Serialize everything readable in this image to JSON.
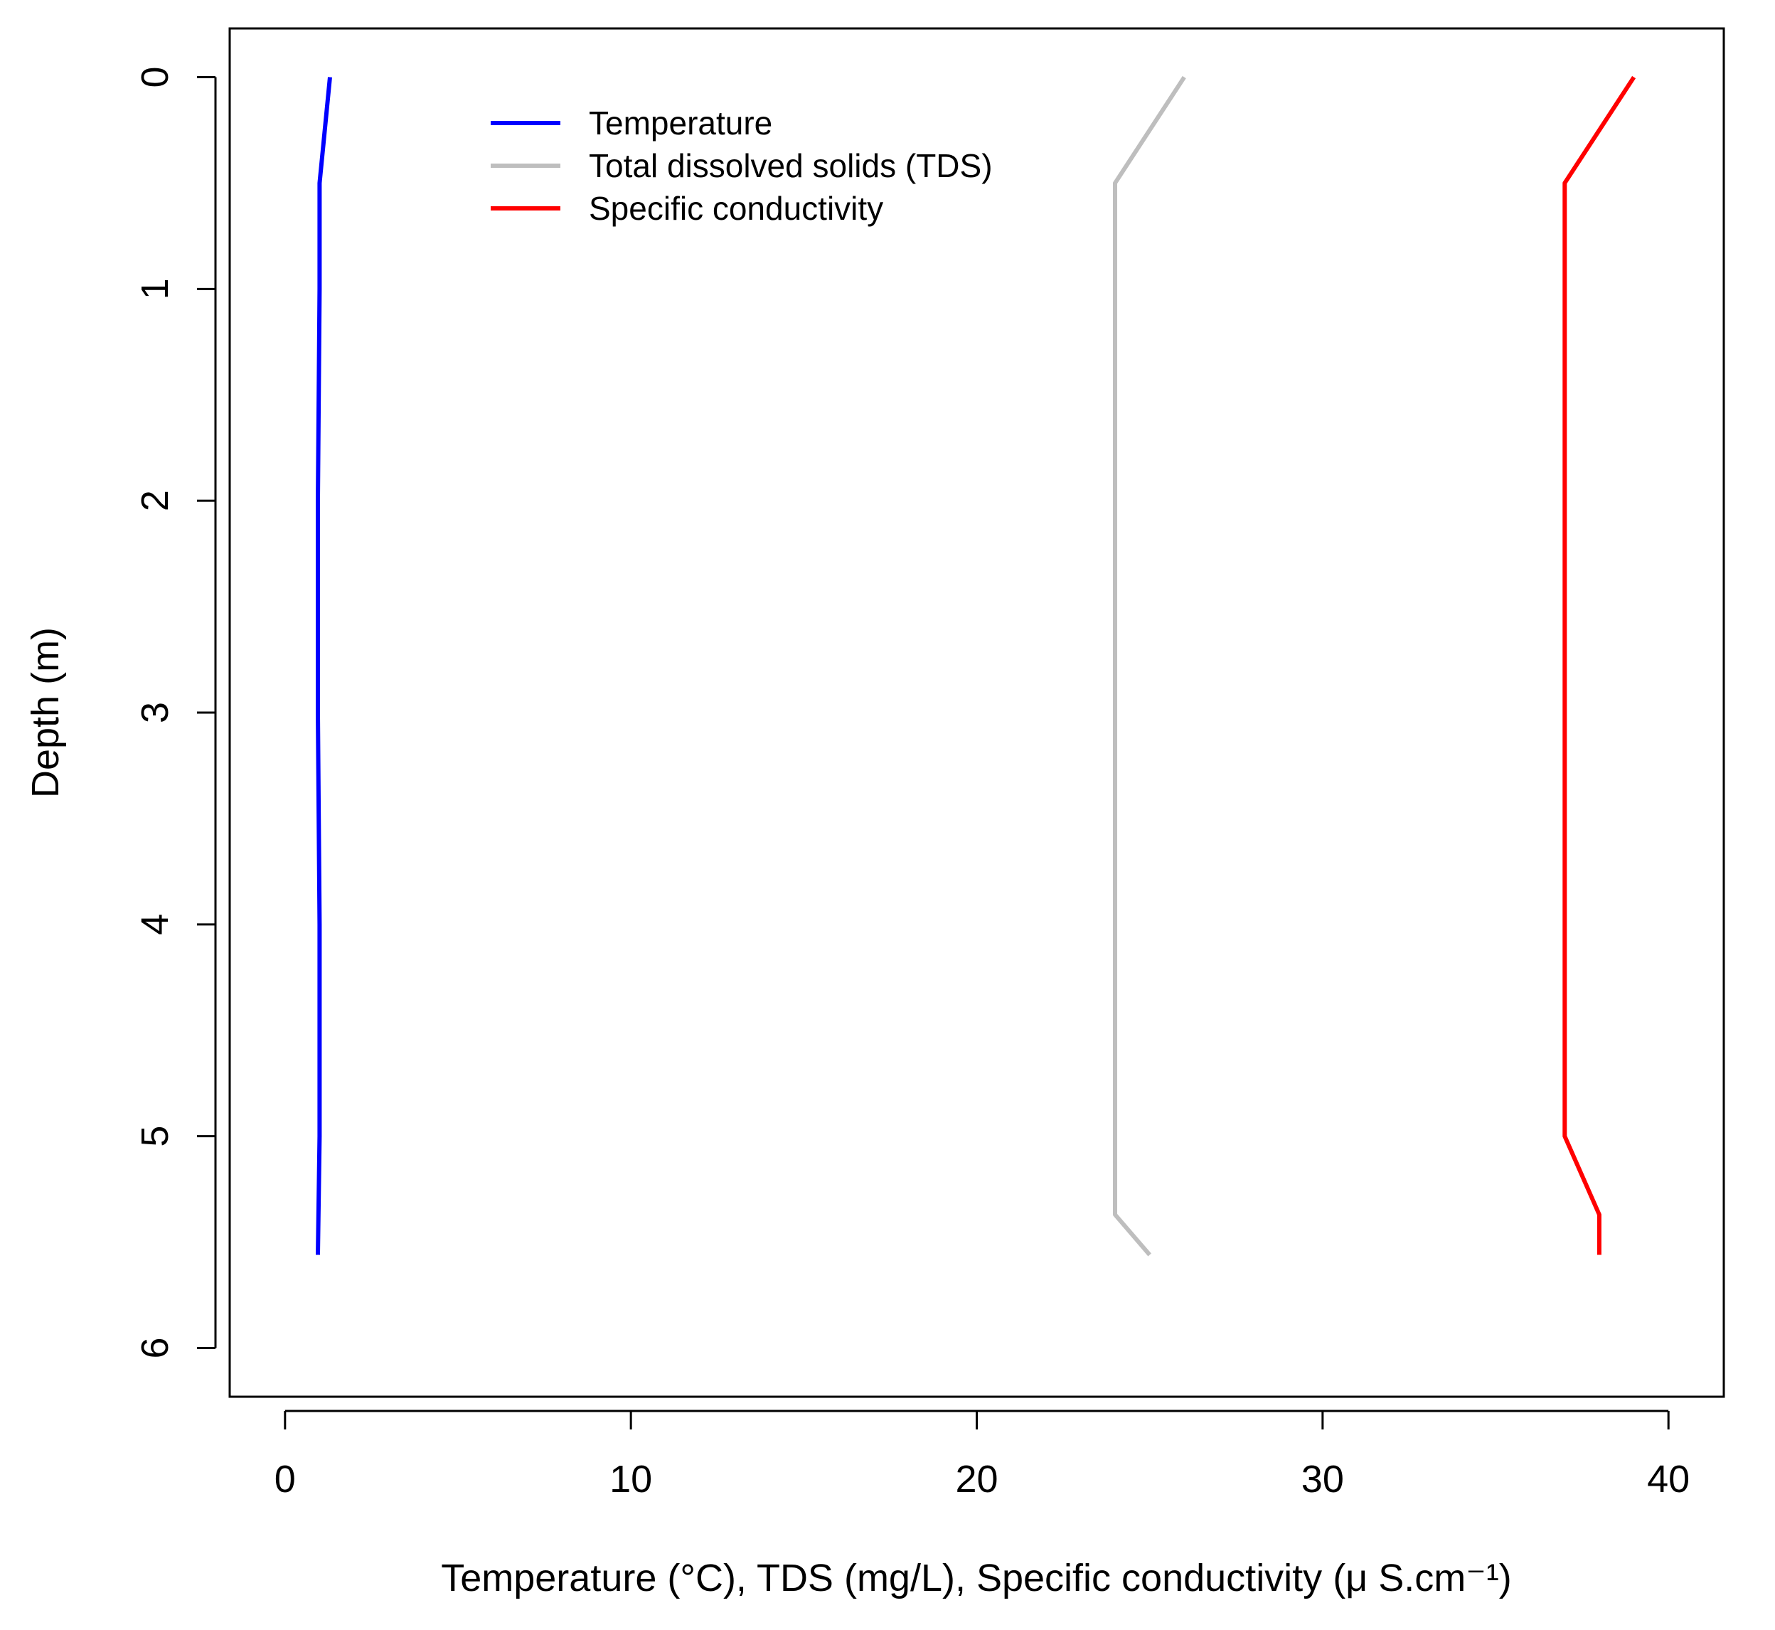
{
  "chart_data": {
    "type": "line",
    "orientation": "depth-profile",
    "xlabel": "Temperature (°C), TDS (mg/L), Specific conductivity (μ S.cm⁻¹)",
    "ylabel": "Depth (m)",
    "xlim": [
      -1.6,
      41.6
    ],
    "ylim": [
      -0.23,
      6.23
    ],
    "y_inverted": true,
    "x_ticks": [
      0,
      10,
      20,
      30,
      40
    ],
    "y_ticks": [
      0,
      1,
      2,
      3,
      4,
      5,
      6
    ],
    "grid": false,
    "legend_position": "top-left",
    "series": [
      {
        "name": "Temperature",
        "color": "#0000ff",
        "points": [
          [
            1.3,
            0.0
          ],
          [
            1.0,
            0.5
          ],
          [
            1.0,
            1.0
          ],
          [
            0.95,
            2.0
          ],
          [
            0.95,
            3.0
          ],
          [
            1.0,
            4.0
          ],
          [
            1.0,
            5.0
          ],
          [
            0.95,
            5.56
          ]
        ]
      },
      {
        "name": "Total dissolved solids (TDS)",
        "color": "#bebebe",
        "points": [
          [
            26.0,
            0.0
          ],
          [
            24.0,
            0.5
          ],
          [
            24.0,
            5.37
          ],
          [
            25.0,
            5.56
          ]
        ]
      },
      {
        "name": "Specific conductivity",
        "color": "#ff0000",
        "points": [
          [
            39.0,
            0.0
          ],
          [
            37.0,
            0.5
          ],
          [
            37.0,
            5.0
          ],
          [
            38.0,
            5.37
          ],
          [
            38.0,
            5.56
          ]
        ]
      }
    ]
  }
}
